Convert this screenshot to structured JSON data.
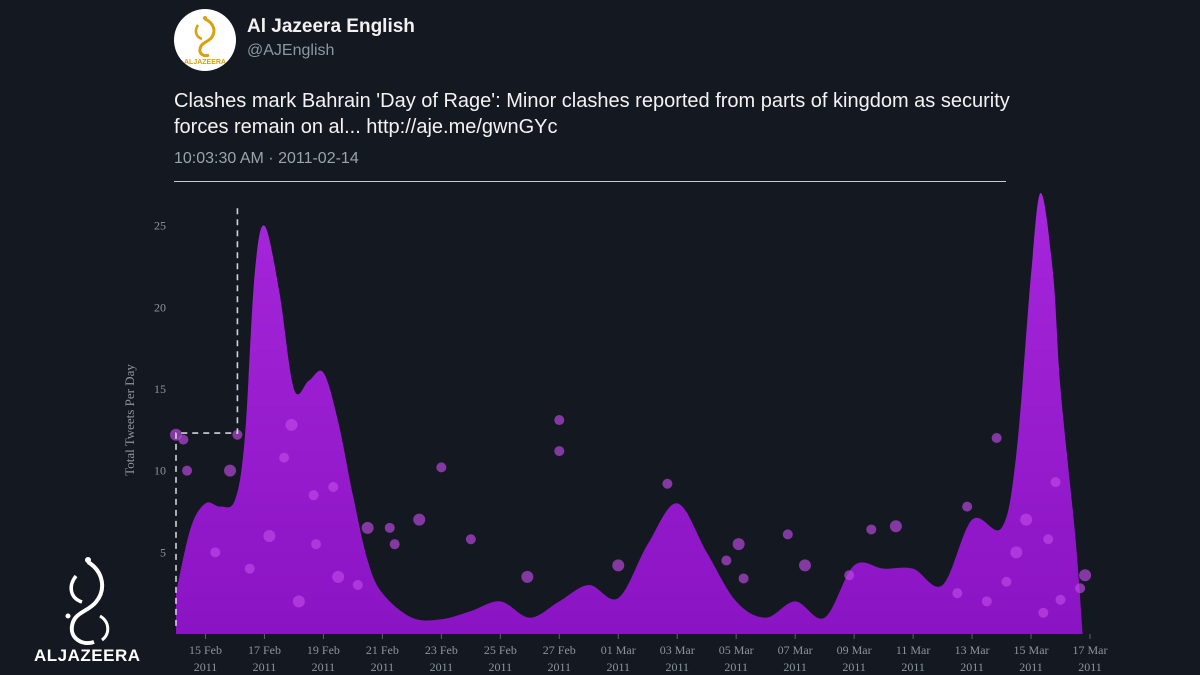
{
  "tweet": {
    "author_name": "Al Jazeera English",
    "handle": "@AJEnglish",
    "text": "Clashes mark Bahrain 'Day of Rage': Minor clashes reported from parts of kingdom as security forces remain on al... http://aje.me/gwnGYc",
    "time": "10:03:30 AM · 2011-02-14",
    "avatar_label": "ALJAZEERA"
  },
  "brand": {
    "logo_text": "ALJAZEERA"
  },
  "colors": {
    "background": "#141821",
    "area": "#9e1fd1",
    "dots": "#c04ae6",
    "axis_text": "#8d949c"
  },
  "chart_data": {
    "type": "area",
    "title": "",
    "xlabel": "",
    "ylabel": "Total Tweets Per Day",
    "ylim": [
      0,
      27
    ],
    "yticks": [
      5,
      10,
      15,
      20,
      25
    ],
    "xlim": [
      "2011-02-14",
      "2011-03-17"
    ],
    "xticks": [
      {
        "date": "2011-02-15",
        "day": "15 Feb",
        "year": "2011"
      },
      {
        "date": "2011-02-17",
        "day": "17 Feb",
        "year": "2011"
      },
      {
        "date": "2011-02-19",
        "day": "19 Feb",
        "year": "2011"
      },
      {
        "date": "2011-02-21",
        "day": "21 Feb",
        "year": "2011"
      },
      {
        "date": "2011-02-23",
        "day": "23 Feb",
        "year": "2011"
      },
      {
        "date": "2011-02-25",
        "day": "25 Feb",
        "year": "2011"
      },
      {
        "date": "2011-02-27",
        "day": "27 Feb",
        "year": "2011"
      },
      {
        "date": "2011-03-01",
        "day": "01 Mar",
        "year": "2011"
      },
      {
        "date": "2011-03-03",
        "day": "03 Mar",
        "year": "2011"
      },
      {
        "date": "2011-03-05",
        "day": "05 Mar",
        "year": "2011"
      },
      {
        "date": "2011-03-07",
        "day": "07 Mar",
        "year": "2011"
      },
      {
        "date": "2011-03-09",
        "day": "09 Mar",
        "year": "2011"
      },
      {
        "date": "2011-03-11",
        "day": "11 Mar",
        "year": "2011"
      },
      {
        "date": "2011-03-13",
        "day": "13 Mar",
        "year": "2011"
      },
      {
        "date": "2011-03-15",
        "day": "15 Mar",
        "year": "2011"
      },
      {
        "date": "2011-03-17",
        "day": "17 Mar",
        "year": "2011"
      }
    ],
    "series": [
      {
        "points": [
          [
            "2011-02-14",
            2.5
          ],
          [
            "2011-02-14T12:00",
            6.5
          ],
          [
            "2011-02-15",
            8.0
          ],
          [
            "2011-02-15T12:00",
            7.8
          ],
          [
            "2011-02-16",
            8.2
          ],
          [
            "2011-02-16T08:00",
            12
          ],
          [
            "2011-02-16T16:00",
            22
          ],
          [
            "2011-02-17",
            25
          ],
          [
            "2011-02-17T12:00",
            21
          ],
          [
            "2011-02-18",
            15
          ],
          [
            "2011-02-18T12:00",
            15.5
          ],
          [
            "2011-02-19",
            16
          ],
          [
            "2011-02-19T12:00",
            13
          ],
          [
            "2011-02-20",
            8.5
          ],
          [
            "2011-02-20T12:00",
            4.5
          ],
          [
            "2011-02-21",
            2.5
          ],
          [
            "2011-02-22",
            1.0
          ],
          [
            "2011-02-23",
            0.9
          ],
          [
            "2011-02-24",
            1.4
          ],
          [
            "2011-02-25",
            2.0
          ],
          [
            "2011-02-26",
            1.0
          ],
          [
            "2011-02-27",
            2.0
          ],
          [
            "2011-02-28",
            3.0
          ],
          [
            "2011-03-01",
            2.2
          ],
          [
            "2011-03-02",
            5.5
          ],
          [
            "2011-03-03",
            8.0
          ],
          [
            "2011-03-04",
            5.0
          ],
          [
            "2011-03-05",
            2.0
          ],
          [
            "2011-03-06",
            1.0
          ],
          [
            "2011-03-07",
            2.0
          ],
          [
            "2011-03-08",
            1.0
          ],
          [
            "2011-03-09",
            4.2
          ],
          [
            "2011-03-10",
            4.0
          ],
          [
            "2011-03-11",
            4.0
          ],
          [
            "2011-03-12",
            3.0
          ],
          [
            "2011-03-13",
            7.0
          ],
          [
            "2011-03-14",
            6.5
          ],
          [
            "2011-03-14T12:00",
            11
          ],
          [
            "2011-03-15",
            22
          ],
          [
            "2011-03-15T08:00",
            27
          ],
          [
            "2011-03-15T18:00",
            22
          ],
          [
            "2011-03-16",
            15
          ],
          [
            "2011-03-16T12:00",
            6
          ],
          [
            "2011-03-16T18:00",
            0
          ]
        ]
      }
    ],
    "scatter": [
      [
        "2011-02-14",
        12.2
      ],
      [
        "2011-02-14T06:00",
        11.9
      ],
      [
        "2011-02-14T09:00",
        10.0
      ],
      [
        "2011-02-15T20:00",
        10.0
      ],
      [
        "2011-02-16T02:00",
        12.2
      ],
      [
        "2011-02-17T16:00",
        10.8
      ],
      [
        "2011-02-17T22:00",
        12.8
      ],
      [
        "2011-02-18T16:00",
        8.5
      ],
      [
        "2011-02-19T08:00",
        9.0
      ],
      [
        "2011-02-20T12:00",
        6.5
      ],
      [
        "2011-02-21T06:00",
        6.5
      ],
      [
        "2011-02-21T10:00",
        5.5
      ],
      [
        "2011-02-22T06:00",
        7.0
      ],
      [
        "2011-02-23T00:00",
        10.2
      ],
      [
        "2011-02-24T00:00",
        5.8
      ],
      [
        "2011-02-25T22:00",
        3.5
      ],
      [
        "2011-02-27T00:00",
        13.1
      ],
      [
        "2011-02-27T00:00",
        11.2
      ],
      [
        "2011-03-01T00:00",
        4.2
      ],
      [
        "2011-03-02T16:00",
        9.2
      ],
      [
        "2011-03-04T16:00",
        4.5
      ],
      [
        "2011-03-05T02:00",
        5.5
      ],
      [
        "2011-03-05T06:00",
        3.4
      ],
      [
        "2011-03-06T18:00",
        6.1
      ],
      [
        "2011-03-07T08:00",
        4.2
      ],
      [
        "2011-03-08T20:00",
        3.6
      ],
      [
        "2011-03-09T14:00",
        6.4
      ],
      [
        "2011-03-10T10:00",
        6.6
      ],
      [
        "2011-03-12T20:00",
        7.8
      ],
      [
        "2011-03-13T20:00",
        12.0
      ],
      [
        "2011-03-14T20:00",
        7.0
      ],
      [
        "2011-03-15T20:00",
        9.3
      ],
      [
        "2011-03-16T00:00",
        2.1
      ],
      [
        "2011-03-16T20:00",
        3.6
      ],
      [
        "2011-03-16T16:00",
        2.8
      ],
      [
        "2011-03-15T10:00",
        1.3
      ],
      [
        "2011-03-14T12:00",
        5.0
      ],
      [
        "2011-03-13T12:00",
        2.0
      ],
      [
        "2011-03-12T12:00",
        2.5
      ],
      [
        "2011-02-19T12:00",
        3.5
      ],
      [
        "2011-02-18T18:00",
        5.5
      ],
      [
        "2011-02-16T12:00",
        4.0
      ],
      [
        "2011-02-17T04:00",
        6.0
      ],
      [
        "2011-02-15T08:00",
        5.0
      ],
      [
        "2011-02-20T04:00",
        3.0
      ],
      [
        "2011-02-18T04:00",
        2.0
      ],
      [
        "2011-03-15T14:00",
        5.8
      ],
      [
        "2011-03-14T04:00",
        3.2
      ]
    ],
    "step_line": [
      [
        "2011-02-14",
        0.5
      ],
      [
        "2011-02-14",
        12.3
      ],
      [
        "2011-02-16T02:00",
        12.3
      ],
      [
        "2011-02-16T02:00",
        26.2
      ]
    ],
    "grid": false
  }
}
